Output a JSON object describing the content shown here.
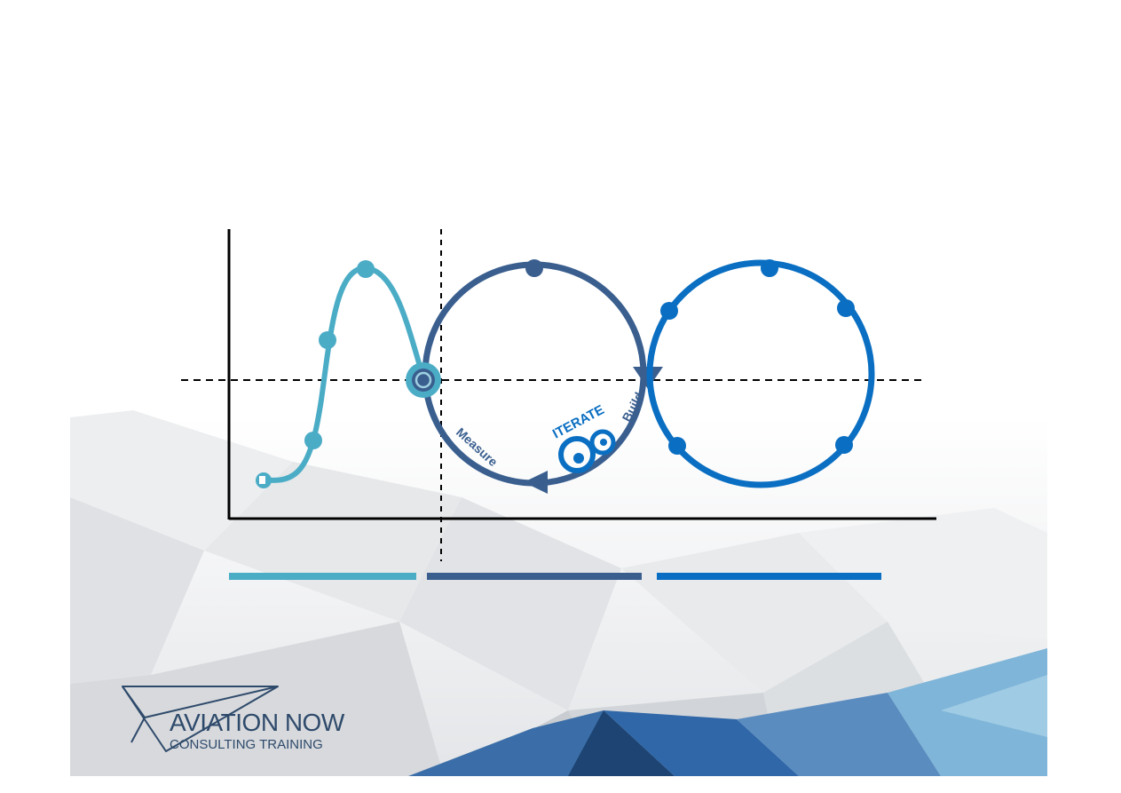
{
  "diagram": {
    "labels": {
      "iterate": "ITERATE",
      "build": "Build",
      "measure": "Measure"
    }
  },
  "logo": {
    "line1": "AVIATION NOW",
    "line2": "CONSULTING TRAINING"
  },
  "colors": {
    "curve_light_blue": "#4bacc6",
    "loop_dark_blue": "#3a5f8f",
    "loop_bright_blue": "#0a6fc2",
    "axis": "#000000",
    "logo": "#2e4a6b"
  }
}
